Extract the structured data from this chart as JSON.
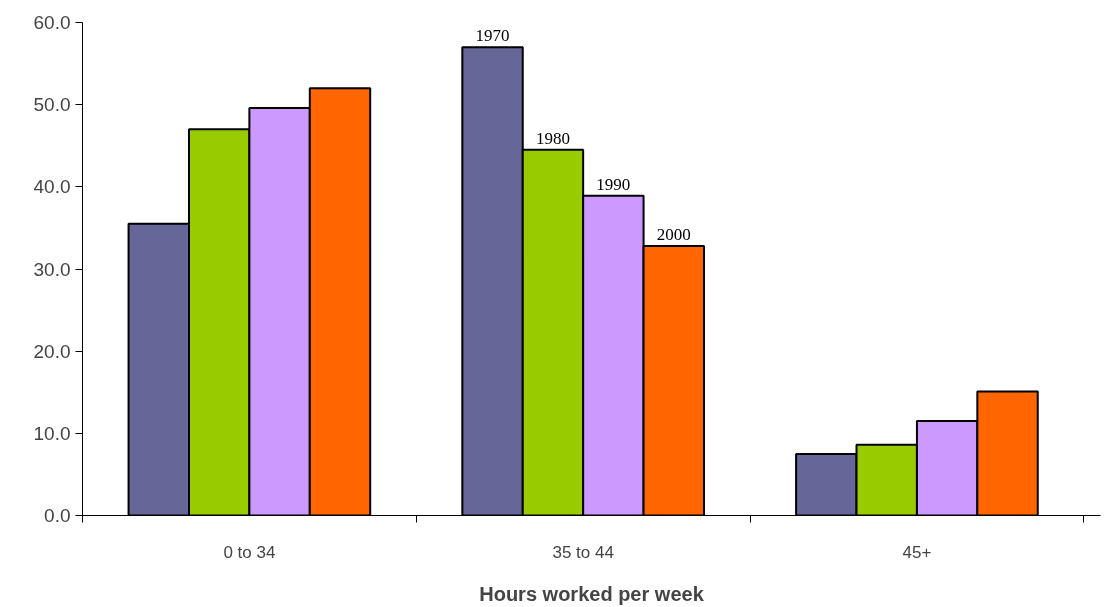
{
  "chart_data": {
    "type": "bar",
    "xlabel": "Hours worked per week",
    "categories": [
      "0 to 34",
      "35 to 44",
      "45+"
    ],
    "series": [
      {
        "name": "1970",
        "color": "#666699",
        "values": [
          35.5,
          57.0,
          7.5
        ]
      },
      {
        "name": "1980",
        "color": "#99cc00",
        "values": [
          47.0,
          44.5,
          8.6
        ]
      },
      {
        "name": "1990",
        "color": "#cc99ff",
        "values": [
          49.6,
          38.9,
          11.5
        ]
      },
      {
        "name": "2000",
        "color": "#ff6600",
        "values": [
          52.0,
          32.8,
          15.1
        ]
      }
    ],
    "ylim": [
      0,
      60
    ],
    "yticks": [
      {
        "value": 0,
        "label": "0.0"
      },
      {
        "value": 10,
        "label": "10.0"
      },
      {
        "value": 20,
        "label": "20.0"
      },
      {
        "value": 30,
        "label": "30.0"
      },
      {
        "value": 40,
        "label": "40.0"
      },
      {
        "value": 50,
        "label": "50.0"
      },
      {
        "value": 60,
        "label": "60.0"
      }
    ],
    "grid": false
  }
}
